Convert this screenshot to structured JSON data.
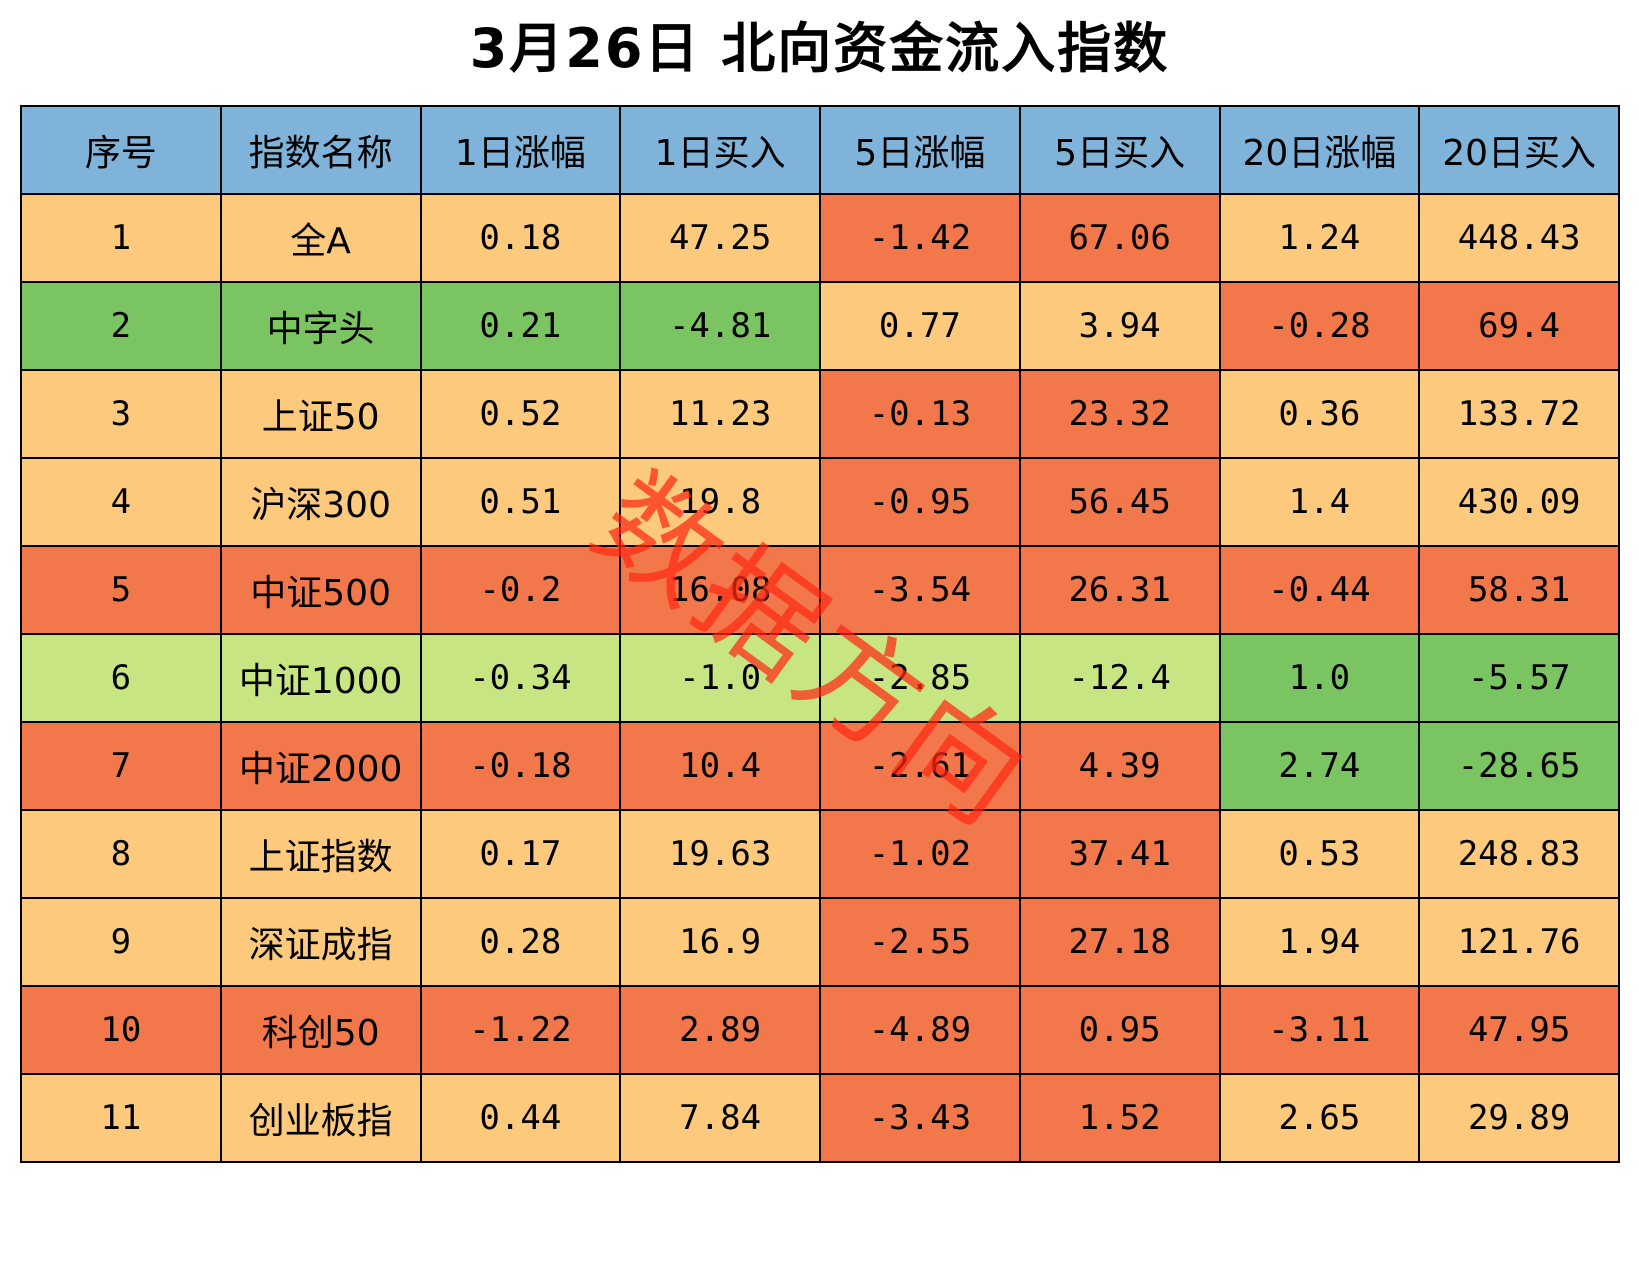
{
  "title": "3月26日  北向资金流入指数",
  "colors": {
    "header": "#7fb3d9",
    "light_orange": "#fcc97d",
    "orange_red": "#f2784b",
    "green": "#7bc462",
    "light_green": "#c8e584",
    "grid_line": "#000000",
    "watermark": "#ff2814"
  },
  "table": {
    "headers": [
      "序号",
      "指数名称",
      "1日涨幅",
      "1日买入",
      "5日涨幅",
      "5日买入",
      "20日涨幅",
      "20日买入"
    ],
    "rows": [
      {
        "cells": [
          "1",
          "全A",
          "0.18",
          "47.25",
          "-1.42",
          "67.06",
          "1.24",
          "448.43"
        ],
        "fills": [
          "light_orange",
          "light_orange",
          "light_orange",
          "light_orange",
          "orange_red",
          "orange_red",
          "light_orange",
          "light_orange"
        ]
      },
      {
        "cells": [
          "2",
          "中字头",
          "0.21",
          "-4.81",
          "0.77",
          "3.94",
          "-0.28",
          "69.4"
        ],
        "fills": [
          "green",
          "green",
          "green",
          "green",
          "light_orange",
          "light_orange",
          "orange_red",
          "orange_red"
        ]
      },
      {
        "cells": [
          "3",
          "上证50",
          "0.52",
          "11.23",
          "-0.13",
          "23.32",
          "0.36",
          "133.72"
        ],
        "fills": [
          "light_orange",
          "light_orange",
          "light_orange",
          "light_orange",
          "orange_red",
          "orange_red",
          "light_orange",
          "light_orange"
        ]
      },
      {
        "cells": [
          "4",
          "沪深300",
          "0.51",
          "19.8",
          "-0.95",
          "56.45",
          "1.4",
          "430.09"
        ],
        "fills": [
          "light_orange",
          "light_orange",
          "light_orange",
          "light_orange",
          "orange_red",
          "orange_red",
          "light_orange",
          "light_orange"
        ]
      },
      {
        "cells": [
          "5",
          "中证500",
          "-0.2",
          "16.08",
          "-3.54",
          "26.31",
          "-0.44",
          "58.31"
        ],
        "fills": [
          "orange_red",
          "orange_red",
          "orange_red",
          "orange_red",
          "orange_red",
          "orange_red",
          "orange_red",
          "orange_red"
        ]
      },
      {
        "cells": [
          "6",
          "中证1000",
          "-0.34",
          "-1.0",
          "-2.85",
          "-12.4",
          "1.0",
          "-5.57"
        ],
        "fills": [
          "light_green",
          "light_green",
          "light_green",
          "light_green",
          "light_green",
          "light_green",
          "green",
          "green"
        ]
      },
      {
        "cells": [
          "7",
          "中证2000",
          "-0.18",
          "10.4",
          "-2.61",
          "4.39",
          "2.74",
          "-28.65"
        ],
        "fills": [
          "orange_red",
          "orange_red",
          "orange_red",
          "orange_red",
          "orange_red",
          "orange_red",
          "green",
          "green"
        ]
      },
      {
        "cells": [
          "8",
          "上证指数",
          "0.17",
          "19.63",
          "-1.02",
          "37.41",
          "0.53",
          "248.83"
        ],
        "fills": [
          "light_orange",
          "light_orange",
          "light_orange",
          "light_orange",
          "orange_red",
          "orange_red",
          "light_orange",
          "light_orange"
        ]
      },
      {
        "cells": [
          "9",
          "深证成指",
          "0.28",
          "16.9",
          "-2.55",
          "27.18",
          "1.94",
          "121.76"
        ],
        "fills": [
          "light_orange",
          "light_orange",
          "light_orange",
          "light_orange",
          "orange_red",
          "orange_red",
          "light_orange",
          "light_orange"
        ]
      },
      {
        "cells": [
          "10",
          "科创50",
          "-1.22",
          "2.89",
          "-4.89",
          "0.95",
          "-3.11",
          "47.95"
        ],
        "fills": [
          "orange_red",
          "orange_red",
          "orange_red",
          "orange_red",
          "orange_red",
          "orange_red",
          "orange_red",
          "orange_red"
        ]
      },
      {
        "cells": [
          "11",
          "创业板指",
          "0.44",
          "7.84",
          "-3.43",
          "1.52",
          "2.65",
          "29.89"
        ],
        "fills": [
          "light_orange",
          "light_orange",
          "light_orange",
          "light_orange",
          "orange_red",
          "orange_red",
          "light_orange",
          "light_orange"
        ]
      }
    ]
  },
  "watermark": "数据方向"
}
